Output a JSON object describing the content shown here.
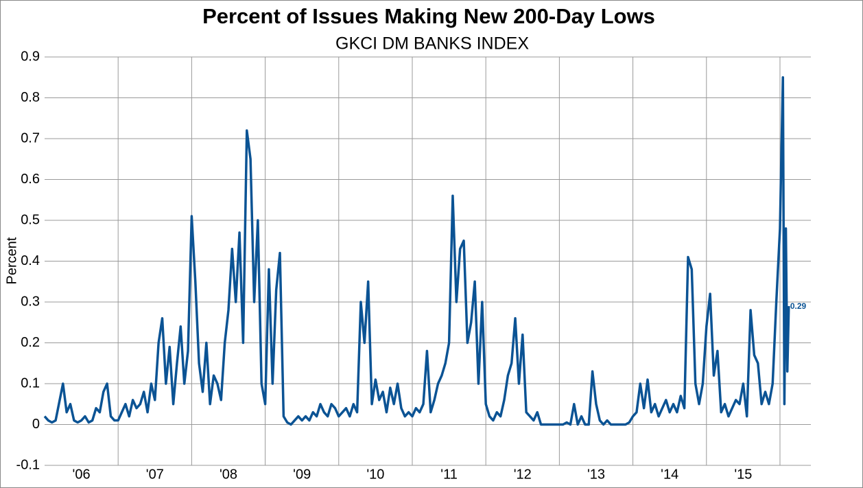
{
  "chart_data": {
    "type": "line",
    "title": "Percent of Issues Making New 200-Day Lows",
    "subtitle": "GKCI DM BANKS INDEX",
    "y_label": "Percent",
    "xlim": [
      2006,
      2016.42
    ],
    "ylim": [
      -0.1,
      0.9
    ],
    "yticks": [
      -0.1,
      0,
      0.1,
      0.2,
      0.3,
      0.4,
      0.5,
      0.6,
      0.7,
      0.8,
      0.9
    ],
    "xticks": [
      {
        "value": 2006.5,
        "label": "'06"
      },
      {
        "value": 2007.5,
        "label": "'07"
      },
      {
        "value": 2008.5,
        "label": "'08"
      },
      {
        "value": 2009.5,
        "label": "'09"
      },
      {
        "value": 2010.5,
        "label": "'10"
      },
      {
        "value": 2011.5,
        "label": "'11"
      },
      {
        "value": 2012.5,
        "label": "'12"
      },
      {
        "value": 2013.5,
        "label": "'13"
      },
      {
        "value": 2014.5,
        "label": "'14"
      },
      {
        "value": 2015.5,
        "label": "'15"
      }
    ],
    "xgrid": [
      2007,
      2008,
      2009,
      2010,
      2011,
      2012,
      2013,
      2014,
      2015,
      2016
    ],
    "grid": true,
    "show_last_value": true,
    "series": [
      {
        "name": "GKCI DM BANKS INDEX",
        "color": "#0b5394",
        "x": [
          2006.0,
          2006.05,
          2006.1,
          2006.15,
          2006.2,
          2006.25,
          2006.3,
          2006.35,
          2006.4,
          2006.45,
          2006.5,
          2006.55,
          2006.6,
          2006.65,
          2006.7,
          2006.75,
          2006.8,
          2006.85,
          2006.9,
          2006.95,
          2007.0,
          2007.05,
          2007.1,
          2007.15,
          2007.2,
          2007.25,
          2007.3,
          2007.35,
          2007.4,
          2007.45,
          2007.5,
          2007.55,
          2007.6,
          2007.65,
          2007.7,
          2007.75,
          2007.8,
          2007.85,
          2007.9,
          2007.95,
          2008.0,
          2008.05,
          2008.1,
          2008.15,
          2008.2,
          2008.25,
          2008.3,
          2008.35,
          2008.4,
          2008.45,
          2008.5,
          2008.55,
          2008.6,
          2008.65,
          2008.7,
          2008.75,
          2008.8,
          2008.85,
          2008.9,
          2008.95,
          2009.0,
          2009.05,
          2009.1,
          2009.15,
          2009.2,
          2009.25,
          2009.3,
          2009.35,
          2009.4,
          2009.45,
          2009.5,
          2009.55,
          2009.6,
          2009.65,
          2009.7,
          2009.75,
          2009.8,
          2009.85,
          2009.9,
          2009.95,
          2010.0,
          2010.05,
          2010.1,
          2010.15,
          2010.2,
          2010.25,
          2010.3,
          2010.35,
          2010.4,
          2010.45,
          2010.5,
          2010.55,
          2010.6,
          2010.65,
          2010.7,
          2010.75,
          2010.8,
          2010.85,
          2010.9,
          2010.95,
          2011.0,
          2011.05,
          2011.1,
          2011.15,
          2011.2,
          2011.25,
          2011.3,
          2011.35,
          2011.4,
          2011.45,
          2011.5,
          2011.55,
          2011.6,
          2011.65,
          2011.7,
          2011.75,
          2011.8,
          2011.85,
          2011.9,
          2011.95,
          2012.0,
          2012.05,
          2012.1,
          2012.15,
          2012.2,
          2012.25,
          2012.3,
          2012.35,
          2012.4,
          2012.45,
          2012.5,
          2012.55,
          2012.6,
          2012.65,
          2012.7,
          2012.75,
          2012.8,
          2012.85,
          2012.9,
          2012.95,
          2013.0,
          2013.05,
          2013.1,
          2013.15,
          2013.2,
          2013.25,
          2013.3,
          2013.35,
          2013.4,
          2013.45,
          2013.5,
          2013.55,
          2013.6,
          2013.65,
          2013.7,
          2013.75,
          2013.8,
          2013.85,
          2013.9,
          2013.95,
          2014.0,
          2014.05,
          2014.1,
          2014.15,
          2014.2,
          2014.25,
          2014.3,
          2014.35,
          2014.4,
          2014.45,
          2014.5,
          2014.55,
          2014.6,
          2014.65,
          2014.7,
          2014.75,
          2014.8,
          2014.85,
          2014.9,
          2014.95,
          2015.0,
          2015.05,
          2015.1,
          2015.15,
          2015.2,
          2015.25,
          2015.3,
          2015.35,
          2015.4,
          2015.45,
          2015.5,
          2015.55,
          2015.6,
          2015.65,
          2015.7,
          2015.75,
          2015.8,
          2015.85,
          2015.9,
          2015.95,
          2016.0,
          2016.02,
          2016.04,
          2016.06,
          2016.08,
          2016.1,
          2016.12
        ],
        "values": [
          0.02,
          0.01,
          0.005,
          0.01,
          0.055,
          0.1,
          0.03,
          0.05,
          0.01,
          0.005,
          0.01,
          0.02,
          0.005,
          0.01,
          0.04,
          0.03,
          0.08,
          0.1,
          0.02,
          0.01,
          0.01,
          0.03,
          0.05,
          0.02,
          0.06,
          0.04,
          0.05,
          0.08,
          0.03,
          0.1,
          0.06,
          0.2,
          0.26,
          0.1,
          0.19,
          0.05,
          0.15,
          0.24,
          0.1,
          0.18,
          0.51,
          0.35,
          0.15,
          0.08,
          0.2,
          0.05,
          0.12,
          0.1,
          0.06,
          0.2,
          0.28,
          0.43,
          0.3,
          0.47,
          0.2,
          0.72,
          0.65,
          0.3,
          0.5,
          0.1,
          0.05,
          0.38,
          0.1,
          0.33,
          0.42,
          0.02,
          0.005,
          0,
          0.01,
          0.02,
          0.01,
          0.02,
          0.01,
          0.03,
          0.02,
          0.05,
          0.03,
          0.02,
          0.05,
          0.04,
          0.02,
          0.03,
          0.04,
          0.02,
          0.05,
          0.03,
          0.3,
          0.2,
          0.35,
          0.05,
          0.11,
          0.06,
          0.08,
          0.03,
          0.09,
          0.05,
          0.1,
          0.04,
          0.02,
          0.03,
          0.02,
          0.04,
          0.03,
          0.05,
          0.18,
          0.03,
          0.06,
          0.1,
          0.12,
          0.15,
          0.2,
          0.56,
          0.3,
          0.43,
          0.45,
          0.2,
          0.25,
          0.35,
          0.1,
          0.3,
          0.05,
          0.02,
          0.01,
          0.03,
          0.02,
          0.06,
          0.12,
          0.15,
          0.26,
          0.1,
          0.22,
          0.03,
          0.02,
          0.01,
          0.03,
          0,
          0,
          0,
          0,
          0,
          0,
          0,
          0.005,
          0,
          0.05,
          0,
          0.02,
          0,
          0,
          0.13,
          0.05,
          0.01,
          0,
          0.01,
          0,
          0,
          0,
          0,
          0,
          0.005,
          0.02,
          0.03,
          0.1,
          0.04,
          0.11,
          0.03,
          0.05,
          0.02,
          0.04,
          0.06,
          0.03,
          0.05,
          0.03,
          0.07,
          0.04,
          0.41,
          0.38,
          0.1,
          0.05,
          0.1,
          0.24,
          0.32,
          0.12,
          0.18,
          0.03,
          0.05,
          0.02,
          0.04,
          0.06,
          0.05,
          0.1,
          0.02,
          0.28,
          0.17,
          0.15,
          0.05,
          0.08,
          0.05,
          0.1,
          0.3,
          0.48,
          0.67,
          0.85,
          0.05,
          0.48,
          0.13,
          0.29
        ]
      }
    ]
  }
}
